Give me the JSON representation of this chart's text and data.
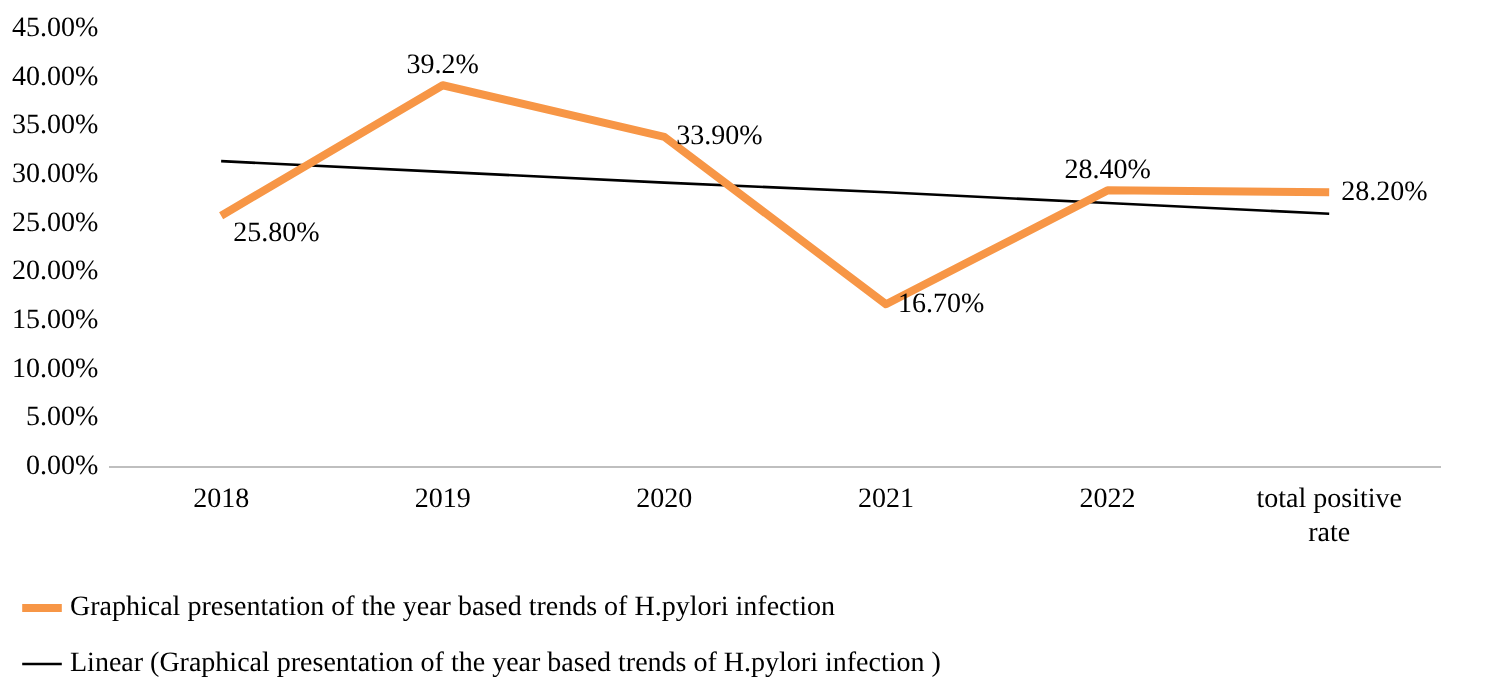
{
  "chart_data": {
    "type": "line",
    "categories": [
      "2018",
      "2019",
      "2020",
      "2021",
      "2022",
      "total positive rate"
    ],
    "series": [
      {
        "name": "Graphical presentation of the year based trends of H.pylori infection",
        "color": "#f79646",
        "values": [
          25.8,
          39.2,
          33.9,
          16.7,
          28.4,
          28.2
        ],
        "value_labels": [
          "25.80%",
          "39.2%",
          "33.90%",
          "16.70%",
          "28.40%",
          "28.20%"
        ]
      },
      {
        "name": "Linear (Graphical presentation of the year based trends of H.pylori infection )",
        "color": "#000000",
        "values": [
          31.4,
          30.3,
          29.2,
          28.2,
          27.1,
          26.0
        ]
      }
    ],
    "ylim": [
      0,
      45
    ],
    "yticks": [
      {
        "value": 0,
        "label": "0.00%"
      },
      {
        "value": 5,
        "label": "5.00%"
      },
      {
        "value": 10,
        "label": "10.00%"
      },
      {
        "value": 15,
        "label": "15.00%"
      },
      {
        "value": 20,
        "label": "20.00%"
      },
      {
        "value": 25,
        "label": "25.00%"
      },
      {
        "value": 30,
        "label": "30.00%"
      },
      {
        "value": 35,
        "label": "35.00%"
      },
      {
        "value": 40,
        "label": "40.00%"
      },
      {
        "value": 45,
        "label": "45.00%"
      }
    ],
    "grid": false,
    "legend": "bottom",
    "marker": "none",
    "line_style": "solid"
  }
}
